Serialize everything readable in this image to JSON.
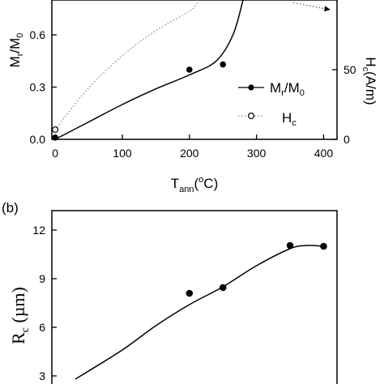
{
  "chart_data": [
    {
      "type": "line",
      "panel_label": "",
      "xlabel": {
        "main": "T",
        "sub": "ann",
        "paren_open": "(",
        "sup": "o",
        "rest": "C)"
      },
      "ylabel_left": {
        "main": "M",
        "sub1": "r",
        "slash": "/M",
        "sub2": "0"
      },
      "ylabel_right": {
        "main": "H",
        "sub": "c",
        "rest": "(A/m)"
      },
      "x_ticks": [
        "0",
        "100",
        "200",
        "300",
        "400"
      ],
      "y_ticks_left": [
        "0.0",
        "0.3",
        "0.6"
      ],
      "y_ticks_right": [
        "0",
        "50"
      ],
      "xlim": [
        -5,
        420
      ],
      "ylim_left": [
        0,
        0.8
      ],
      "ylim_right": [
        0,
        100
      ],
      "series": [
        {
          "name": "Mr/M0",
          "legend": {
            "main": "M",
            "sub1": "r",
            "slash": "/M",
            "sub2": "0"
          },
          "marker": "filled-circle",
          "line": "solid",
          "points": [
            [
              0,
              0.01
            ],
            [
              200,
              0.4
            ],
            [
              250,
              0.43
            ]
          ],
          "curve": [
            [
              0,
              0.0
            ],
            [
              50,
              0.1
            ],
            [
              100,
              0.2
            ],
            [
              150,
              0.29
            ],
            [
              200,
              0.37
            ],
            [
              240,
              0.45
            ],
            [
              265,
              0.6
            ],
            [
              280,
              0.8
            ]
          ]
        },
        {
          "name": "Hc",
          "legend": {
            "main": "H",
            "sub": "c"
          },
          "marker": "open-circle",
          "line": "dotted",
          "points": [
            [
              0,
              7
            ]
          ],
          "curve": [
            [
              0,
              7
            ],
            [
              50,
              37
            ],
            [
              100,
              60
            ],
            [
              150,
              78
            ],
            [
              200,
              92
            ],
            [
              215,
              100
            ]
          ],
          "arrow_segment": [
            [
              355,
              98
            ],
            [
              410,
              93
            ]
          ]
        }
      ]
    },
    {
      "type": "line",
      "panel_label": "(b)",
      "ylabel": {
        "main": "R",
        "sub": "c",
        "rest": " (µm)"
      },
      "y_ticks": [
        "3",
        "6",
        "9",
        "12"
      ],
      "ylim": [
        2.5,
        13.2
      ],
      "xlim": [
        -5,
        420
      ],
      "points": [
        [
          200,
          8.1
        ],
        [
          250,
          8.45
        ],
        [
          350,
          11.05
        ],
        [
          400,
          11.0
        ]
      ],
      "curve": [
        [
          30,
          2.8
        ],
        [
          100,
          4.6
        ],
        [
          150,
          6.1
        ],
        [
          200,
          7.4
        ],
        [
          250,
          8.5
        ],
        [
          300,
          9.8
        ],
        [
          350,
          10.85
        ],
        [
          375,
          11.05
        ],
        [
          400,
          11.0
        ]
      ]
    }
  ]
}
